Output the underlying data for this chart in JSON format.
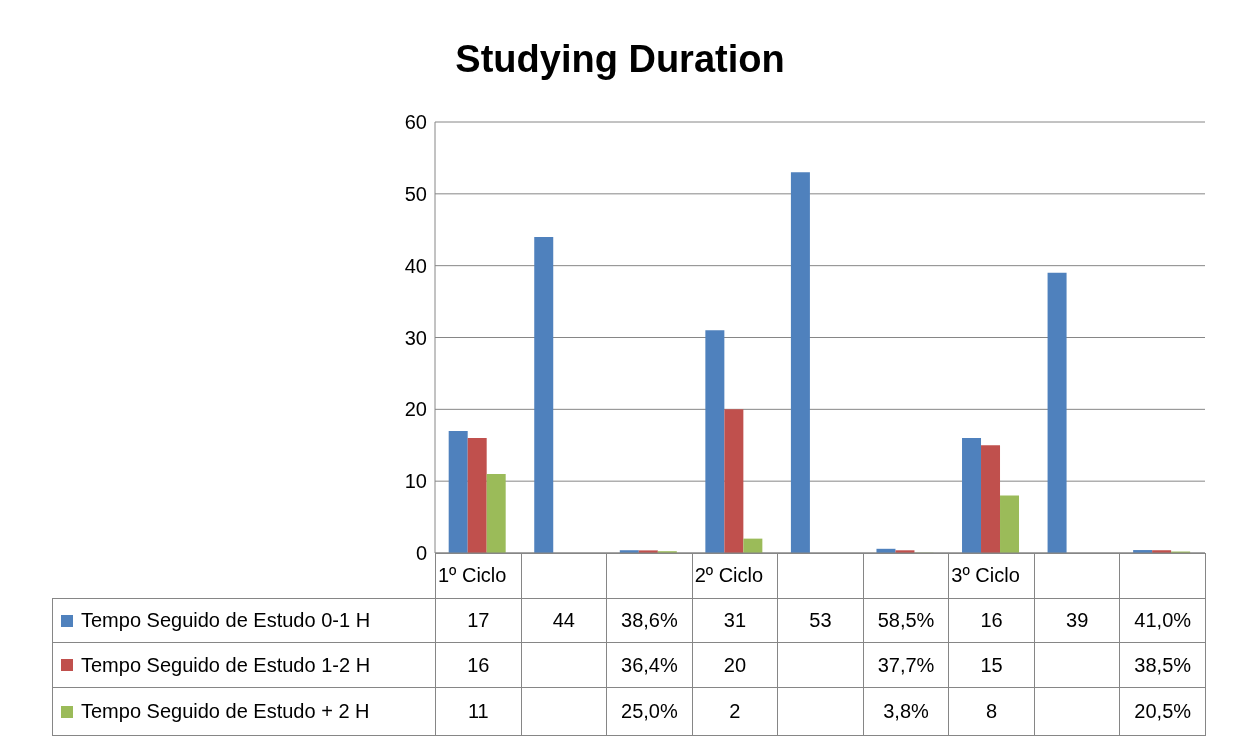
{
  "chart_data": {
    "type": "bar",
    "title": "Studying Duration",
    "categories": [
      "1º Ciclo",
      null,
      null,
      "2º Ciclo",
      null,
      null,
      "3º Ciclo",
      null,
      null
    ],
    "series": [
      {
        "name": "Tempo Seguido de Estudo 0-1 H",
        "color": "#4f81bd",
        "values": [
          17,
          44,
          0.386,
          31,
          53,
          0.585,
          16,
          39,
          0.41
        ],
        "value_labels": [
          "17",
          "44",
          "38,6%",
          "31",
          "53",
          "58,5%",
          "16",
          "39",
          "41,0%"
        ]
      },
      {
        "name": "Tempo Seguido de Estudo 1-2 H",
        "color": "#c0504d",
        "values": [
          16,
          null,
          0.364,
          20,
          null,
          0.377,
          15,
          null,
          0.385
        ],
        "value_labels": [
          "16",
          null,
          "36,4%",
          "20",
          null,
          "37,7%",
          "15",
          null,
          "38,5%"
        ]
      },
      {
        "name": "Tempo Seguido de Estudo + 2 H",
        "color": "#9bbb59",
        "values": [
          11,
          null,
          0.25,
          2,
          null,
          0.038,
          8,
          null,
          0.205
        ],
        "value_labels": [
          "11",
          null,
          "25,0%",
          "2",
          null,
          "3,8%",
          "8",
          null,
          "20,5%"
        ]
      }
    ],
    "ylim": [
      0,
      60
    ],
    "yticks": [
      0,
      10,
      20,
      30,
      40,
      50,
      60
    ],
    "grid": "y",
    "legend": "bottom"
  }
}
